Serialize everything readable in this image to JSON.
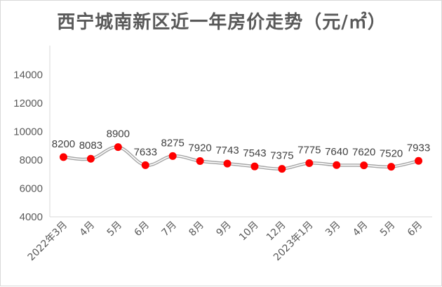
{
  "chart_data": {
    "type": "line",
    "title": "西宁城南新区近一年房价走势（元/㎡）",
    "categories": [
      "2022年3月",
      "4月",
      "5月",
      "6月",
      "7月",
      "8月",
      "9月",
      "10月",
      "12月",
      "2023年1月",
      "3月",
      "4月",
      "5月",
      "6月"
    ],
    "series": [
      {
        "values": [
          8200,
          8083,
          8900,
          7633,
          8275,
          7920,
          7743,
          7543,
          7375,
          7775,
          7640,
          7620,
          7520,
          7933
        ]
      }
    ],
    "data_labels": [
      "8200",
      "8083",
      "8900",
      "7633",
      "8275",
      "7920",
      "7743",
      "7543",
      "7375",
      "7775",
      "7640",
      "7620",
      "7520",
      "7933"
    ],
    "yticks": [
      "4000",
      "6000",
      "8000",
      "10000",
      "12000",
      "14000"
    ],
    "ylim": [
      4000,
      15000
    ],
    "xlabel": "",
    "ylabel": "",
    "grid": false,
    "legend": "none",
    "colors": {
      "line": "#a6a6a6",
      "marker": "#ff0000",
      "text": "#595959",
      "axis": "#d9d9d9"
    }
  }
}
